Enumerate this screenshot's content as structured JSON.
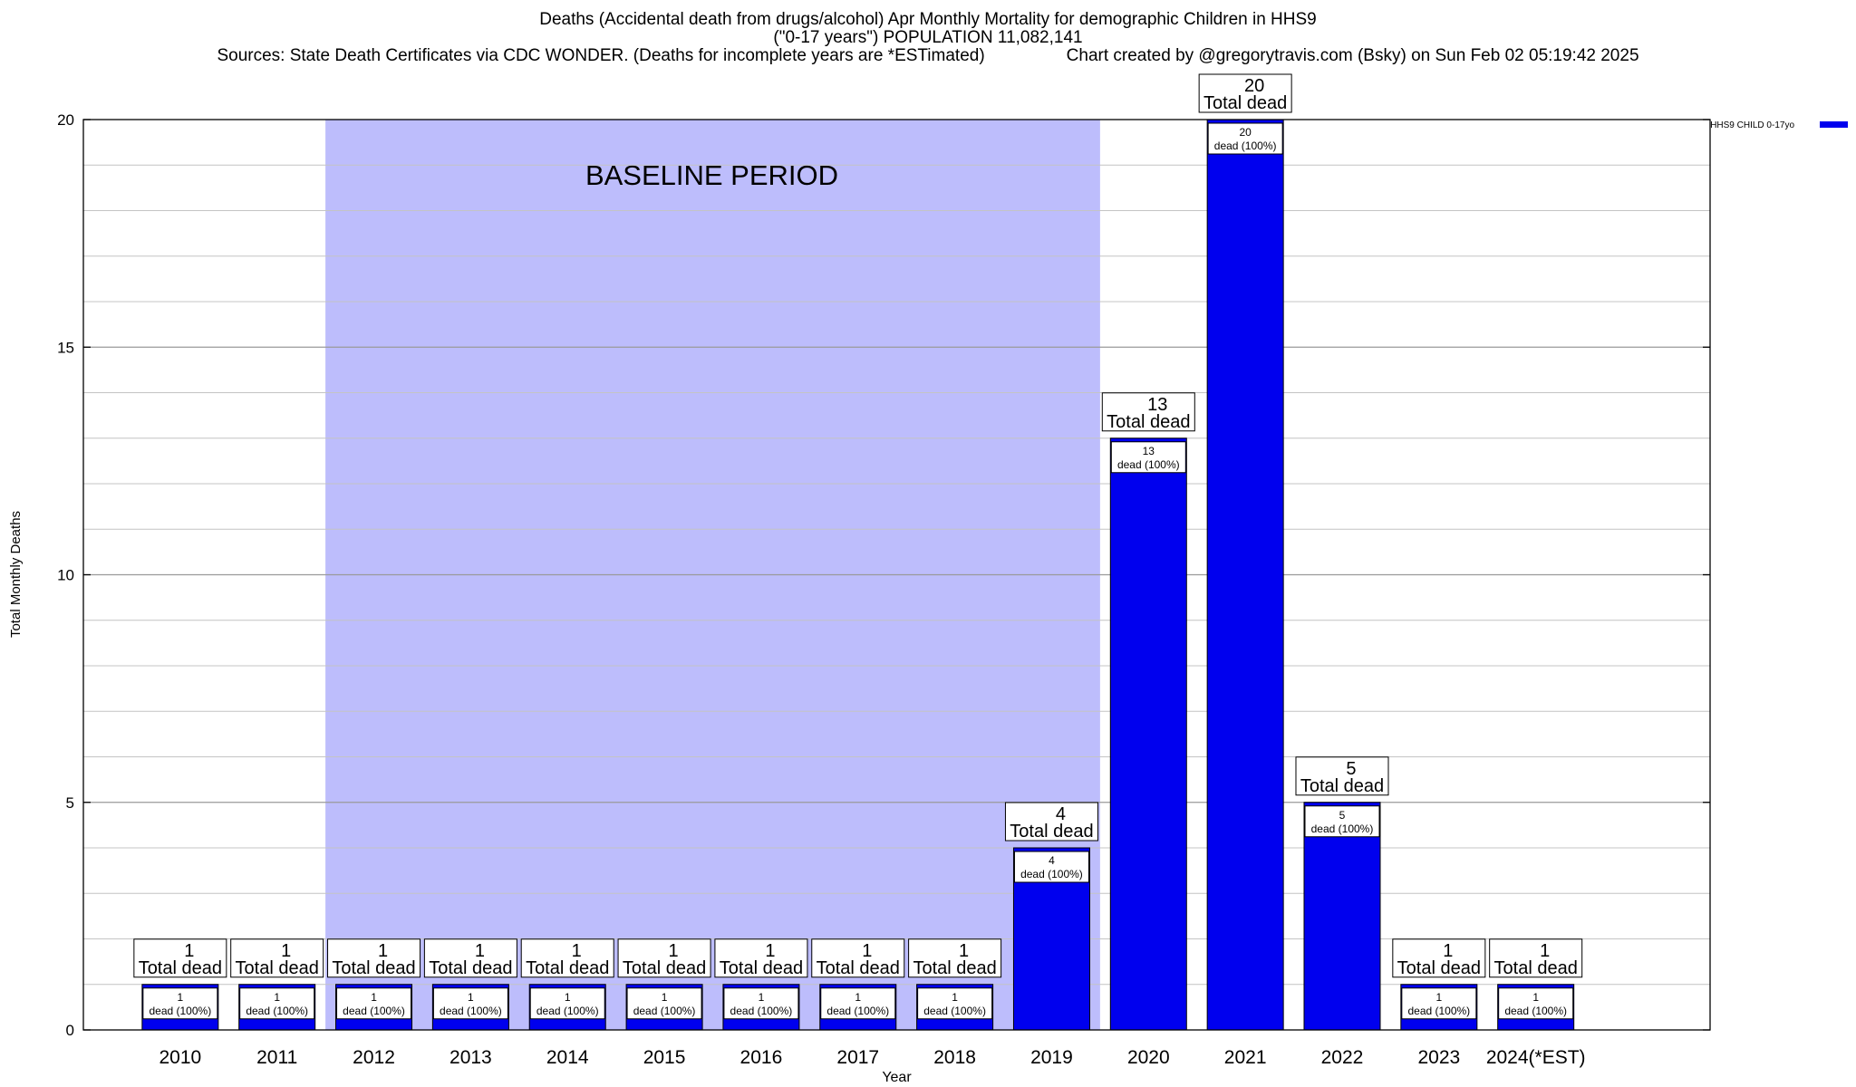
{
  "chart_data": {
    "type": "bar",
    "title": "Deaths (Accidental death from drugs/alcohol) Apr Monthly Mortality for demographic Children in HHS9",
    "subtitle": "(\"0-17 years\") POPULATION 11,082,141",
    "sources": "Sources: State Death Certificates via CDC WONDER. (Deaths for incomplete years are *ESTimated)",
    "credit": "Chart created by @gregorytravis.com (Bsky) on Sun Feb 02 05:19:42 2025",
    "xlabel": "Year",
    "ylabel": "Total Monthly Deaths",
    "ylim": [
      0,
      20
    ],
    "yticks": [
      0,
      5,
      10,
      15,
      20
    ],
    "grid": true,
    "legend_position": "top-right",
    "categories": [
      "2010",
      "2011",
      "2012",
      "2013",
      "2014",
      "2015",
      "2016",
      "2017",
      "2018",
      "2019",
      "2020",
      "2021",
      "2022",
      "2023",
      "2024(*EST)"
    ],
    "series": [
      {
        "name": "HHS9 CHILD 0-17yo",
        "color": "#0000ee",
        "values": [
          1,
          1,
          1,
          1,
          1,
          1,
          1,
          1,
          1,
          4,
          13,
          20,
          5,
          1,
          1
        ]
      }
    ],
    "bar_label_top": "Total dead",
    "bar_label_inner": "dead (100%)",
    "baseline_region": {
      "label": "BASELINE PERIOD",
      "start": "2012",
      "end": "2019",
      "color": "#bdbdfc"
    }
  }
}
